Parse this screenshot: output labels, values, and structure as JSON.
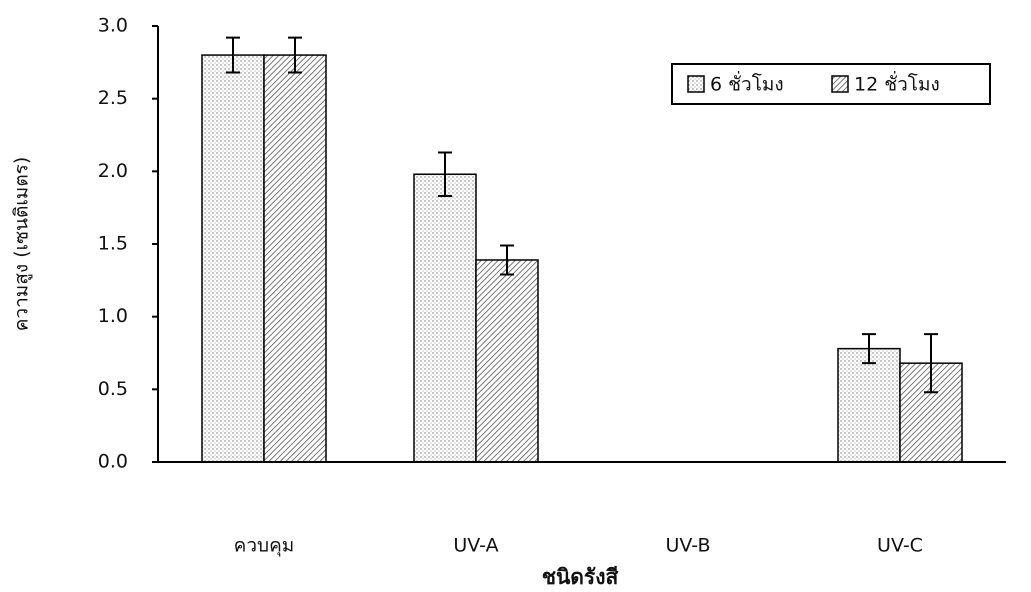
{
  "chart_data": {
    "type": "bar",
    "y_label": "ความสูง (เซนติเมตร)",
    "x_label": "ชนิดรังสี",
    "categories": [
      "ควบคุม",
      "UV-A",
      "UV-B",
      "UV-C"
    ],
    "series": [
      {
        "name": "6 ชั่วโมง",
        "color": "#ffffff",
        "pattern": "dots",
        "values": [
          2.8,
          1.98,
          0,
          0.78
        ],
        "errors": [
          0.12,
          0.15,
          0,
          0.1
        ]
      },
      {
        "name": "12 ชั่วโมง",
        "color": "#ffffff",
        "pattern": "hatch",
        "values": [
          2.8,
          1.39,
          0,
          0.68
        ],
        "errors": [
          0.12,
          0.1,
          0,
          0.2
        ]
      }
    ],
    "ylim": [
      0,
      3
    ],
    "yticks": [
      {
        "value": 0,
        "label": "0.0"
      },
      0.5,
      {
        "value": 1,
        "label": "1.0"
      },
      1.5,
      {
        "value": 2,
        "label": "2.0"
      },
      2.5,
      {
        "value": 3,
        "label": "3.0"
      }
    ],
    "legend": "top-right"
  }
}
